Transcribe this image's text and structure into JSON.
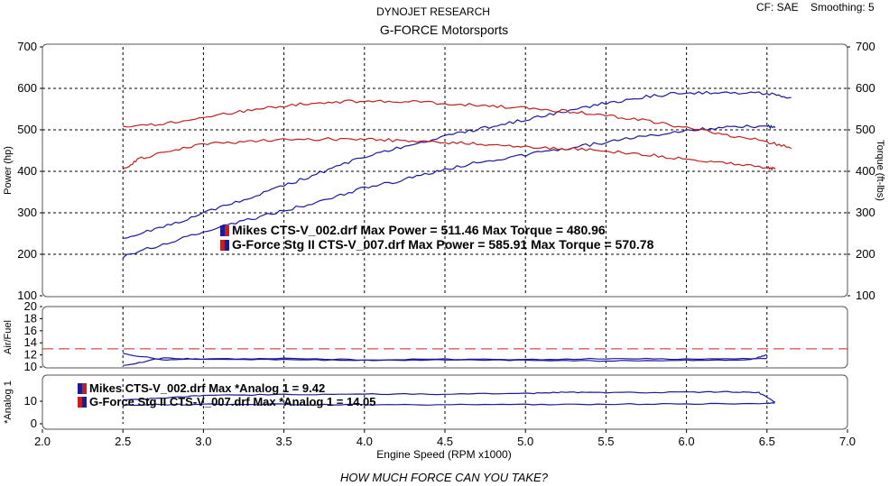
{
  "header": {
    "title": "DYNOJET RESEARCH",
    "subtitle": "G-FORCE Motorsports",
    "cf": "CF: SAE",
    "smoothing": "Smoothing: 5"
  },
  "footer": {
    "tagline": "HOW MUCH FORCE CAN YOU TAKE?"
  },
  "colors": {
    "run1": "#1a1a9a",
    "run2": "#c02020",
    "grid": "#000000",
    "ref_line": "#cc2222"
  },
  "chart_data": [
    {
      "type": "line",
      "xlabel": "Engine Speed (RPM x1000)",
      "ylabel": "Power (hp)",
      "y2label": "Torque (ft-lbs)",
      "xlim": [
        2.0,
        7.0
      ],
      "ylim": [
        100,
        700
      ],
      "xticks": [
        "2.0",
        "2.5",
        "3.0",
        "3.5",
        "4.0",
        "4.5",
        "5.0",
        "5.5",
        "6.0",
        "6.5",
        "7.0"
      ],
      "yticks": [
        "700",
        "600",
        "500",
        "400",
        "300",
        "200",
        "100"
      ],
      "y2ticks": [
        "700",
        "600",
        "500",
        "400",
        "300",
        "200",
        "100"
      ],
      "grid": true,
      "legend": [
        {
          "text": "Mikes CTS-V_002.drf Max Power = 511.46     Max Torque = 480.96",
          "color_left": "#1a1a9a",
          "color_right": "#c02020"
        },
        {
          "text": "G-Force Stg II CTS-V_007.drf Max Power = 585.91     Max Torque = 570.78",
          "color_left": "#c02020",
          "color_right": "#1a1a9a"
        }
      ],
      "series": [
        {
          "color": "#1a1a9a",
          "x": [
            2.5,
            2.75,
            3.0,
            3.25,
            3.5,
            3.75,
            4.0,
            4.25,
            4.5,
            4.75,
            5.0,
            5.25,
            5.5,
            5.75,
            6.0,
            6.25,
            6.5,
            6.55
          ],
          "values": [
            195,
            225,
            255,
            280,
            305,
            330,
            360,
            380,
            405,
            425,
            440,
            455,
            470,
            485,
            500,
            505,
            510,
            505
          ]
        },
        {
          "color": "#1a1a9a",
          "x": [
            2.5,
            2.75,
            3.0,
            3.25,
            3.5,
            3.75,
            4.0,
            4.25,
            4.5,
            4.75,
            5.0,
            5.25,
            5.5,
            5.75,
            6.0,
            6.25,
            6.5,
            6.65
          ],
          "values": [
            240,
            265,
            300,
            330,
            365,
            400,
            435,
            460,
            485,
            505,
            525,
            545,
            565,
            580,
            590,
            588,
            588,
            578
          ]
        },
        {
          "color": "#c02020",
          "x": [
            2.5,
            2.6,
            2.75,
            3.0,
            3.25,
            3.5,
            3.75,
            4.0,
            4.25,
            4.5,
            4.75,
            5.0,
            5.25,
            5.5,
            5.75,
            6.0,
            6.25,
            6.5,
            6.55
          ],
          "values": [
            405,
            430,
            445,
            465,
            472,
            476,
            478,
            477,
            474,
            470,
            465,
            460,
            455,
            448,
            440,
            430,
            420,
            410,
            405
          ]
        },
        {
          "color": "#c02020",
          "x": [
            2.5,
            2.75,
            3.0,
            3.25,
            3.5,
            3.75,
            4.0,
            4.25,
            4.5,
            4.75,
            5.0,
            5.25,
            5.5,
            5.75,
            6.0,
            6.25,
            6.5,
            6.65
          ],
          "values": [
            505,
            515,
            530,
            545,
            558,
            566,
            570,
            568,
            564,
            558,
            552,
            545,
            535,
            522,
            505,
            488,
            472,
            455
          ]
        }
      ]
    },
    {
      "type": "line",
      "ylabel": "Air/Fuel",
      "xlim": [
        2.0,
        7.0
      ],
      "ylim": [
        10,
        20
      ],
      "yticks": [
        "20",
        "18",
        "16",
        "14",
        "12",
        "10"
      ],
      "reference_line": 13,
      "grid": true,
      "series": [
        {
          "color": "#1a1a9a",
          "x": [
            2.5,
            2.75,
            3.0,
            3.5,
            4.0,
            4.5,
            5.0,
            5.5,
            6.0,
            6.4,
            6.5
          ],
          "values": [
            12.2,
            11.2,
            11.3,
            11.2,
            11.1,
            11.2,
            11.1,
            11.0,
            11.1,
            11.2,
            12.0
          ]
        },
        {
          "color": "#1a1a9a",
          "x": [
            2.5,
            2.75,
            3.0,
            3.5,
            4.0,
            4.5,
            5.0,
            5.5,
            6.0,
            6.5
          ],
          "values": [
            10.2,
            11.5,
            11.3,
            11.4,
            11.2,
            11.3,
            11.2,
            11.4,
            11.3,
            11.4
          ]
        }
      ]
    },
    {
      "type": "line",
      "ylabel": "*Analog 1",
      "xlim": [
        2.0,
        7.0
      ],
      "ylim": [
        0,
        20
      ],
      "yticks": [
        "10",
        "0"
      ],
      "xlabel": "Engine Speed (RPM x1000)",
      "legend": [
        {
          "text": "Mikes CTS-V_002.drf Max *Analog 1 = 9.42",
          "color_left": "#1a1a9a",
          "color_right": "#c02020"
        },
        {
          "text": "G-Force Stg II CTS-V_007.drf Max *Analog 1 = 14.05",
          "color_left": "#c02020",
          "color_right": "#1a1a9a"
        }
      ],
      "series": [
        {
          "color": "#1a1a9a",
          "x": [
            2.5,
            2.75,
            3.0,
            3.5,
            4.0,
            4.5,
            5.0,
            5.25,
            5.5,
            6.0,
            6.25,
            6.45,
            6.55
          ],
          "values": [
            10.5,
            11.5,
            12.5,
            13.0,
            13.2,
            13.2,
            13.5,
            14.0,
            13.8,
            14.0,
            14.2,
            13.8,
            9.5
          ]
        },
        {
          "color": "#1a1a9a",
          "x": [
            2.5,
            2.75,
            3.0,
            3.5,
            4.0,
            4.5,
            5.0,
            5.5,
            6.0,
            6.5,
            6.55
          ],
          "values": [
            8.2,
            8.5,
            8.6,
            8.6,
            8.5,
            8.5,
            8.6,
            8.7,
            8.8,
            9.0,
            9.3
          ]
        }
      ]
    }
  ]
}
